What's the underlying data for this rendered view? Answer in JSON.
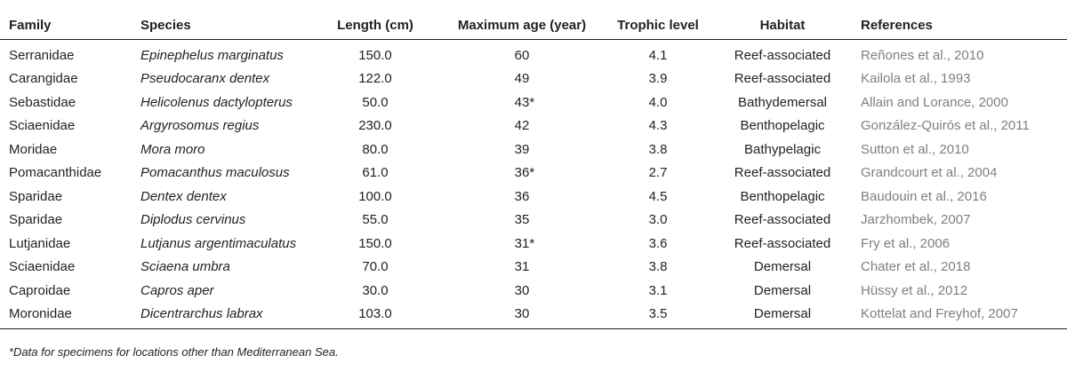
{
  "table": {
    "headers": {
      "family": "Family",
      "species": "Species",
      "length": "Length (cm)",
      "max_age": "Maximum age (year)",
      "trophic": "Trophic level",
      "habitat": "Habitat",
      "references": "References"
    },
    "rows": [
      {
        "family": "Serranidae",
        "species": "Epinephelus marginatus",
        "length": "150.0",
        "age": "60",
        "age_mark": "",
        "trophic": "4.1",
        "habitat": "Reef-associated",
        "reference": "Reñones et al., 2010"
      },
      {
        "family": "Carangidae",
        "species": "Pseudocaranx dentex",
        "length": "122.0",
        "age": "49",
        "age_mark": "",
        "trophic": "3.9",
        "habitat": "Reef-associated",
        "reference": "Kailola et al., 1993"
      },
      {
        "family": "Sebastidae",
        "species": "Helicolenus dactylopterus",
        "length": "50.0",
        "age": "43",
        "age_mark": "*",
        "trophic": "4.0",
        "habitat": "Bathydemersal",
        "reference": "Allain and Lorance, 2000"
      },
      {
        "family": "Sciaenidae",
        "species": "Argyrosomus regius",
        "length": "230.0",
        "age": "42",
        "age_mark": "",
        "trophic": "4.3",
        "habitat": "Benthopelagic",
        "reference": "González-Quirós et al., 2011"
      },
      {
        "family": "Moridae",
        "species": "Mora moro",
        "length": "80.0",
        "age": "39",
        "age_mark": "",
        "trophic": "3.8",
        "habitat": "Bathypelagic",
        "reference": "Sutton et al., 2010"
      },
      {
        "family": "Pomacanthidae",
        "species": "Pomacanthus maculosus",
        "length": "61.0",
        "age": "36",
        "age_mark": "*",
        "trophic": "2.7",
        "habitat": "Reef-associated",
        "reference": "Grandcourt et al., 2004"
      },
      {
        "family": "Sparidae",
        "species": "Dentex dentex",
        "length": "100.0",
        "age": "36",
        "age_mark": "",
        "trophic": "4.5",
        "habitat": "Benthopelagic",
        "reference": "Baudouin et al., 2016"
      },
      {
        "family": "Sparidae",
        "species": "Diplodus cervinus",
        "length": "55.0",
        "age": "35",
        "age_mark": "",
        "trophic": "3.0",
        "habitat": "Reef-associated",
        "reference": "Jarzhombek, 2007"
      },
      {
        "family": "Lutjanidae",
        "species": "Lutjanus argentimaculatus",
        "length": "150.0",
        "age": "31",
        "age_mark": "*",
        "trophic": "3.6",
        "habitat": "Reef-associated",
        "reference": "Fry et al., 2006"
      },
      {
        "family": "Sciaenidae",
        "species": "Sciaena umbra",
        "length": "70.0",
        "age": "31",
        "age_mark": "",
        "trophic": "3.8",
        "habitat": "Demersal",
        "reference": "Chater et al., 2018"
      },
      {
        "family": "Caproidae",
        "species": "Capros aper",
        "length": "30.0",
        "age": "30",
        "age_mark": "",
        "trophic": "3.1",
        "habitat": "Demersal",
        "reference": "Hüssy et al., 2012"
      },
      {
        "family": "Moronidae",
        "species": "Dicentrarchus labrax",
        "length": "103.0",
        "age": "30",
        "age_mark": "",
        "trophic": "3.5",
        "habitat": "Demersal",
        "reference": "Kottelat and Freyhof, 2007"
      }
    ]
  },
  "footnote": "*Data for specimens for locations other than Mediterranean Sea."
}
